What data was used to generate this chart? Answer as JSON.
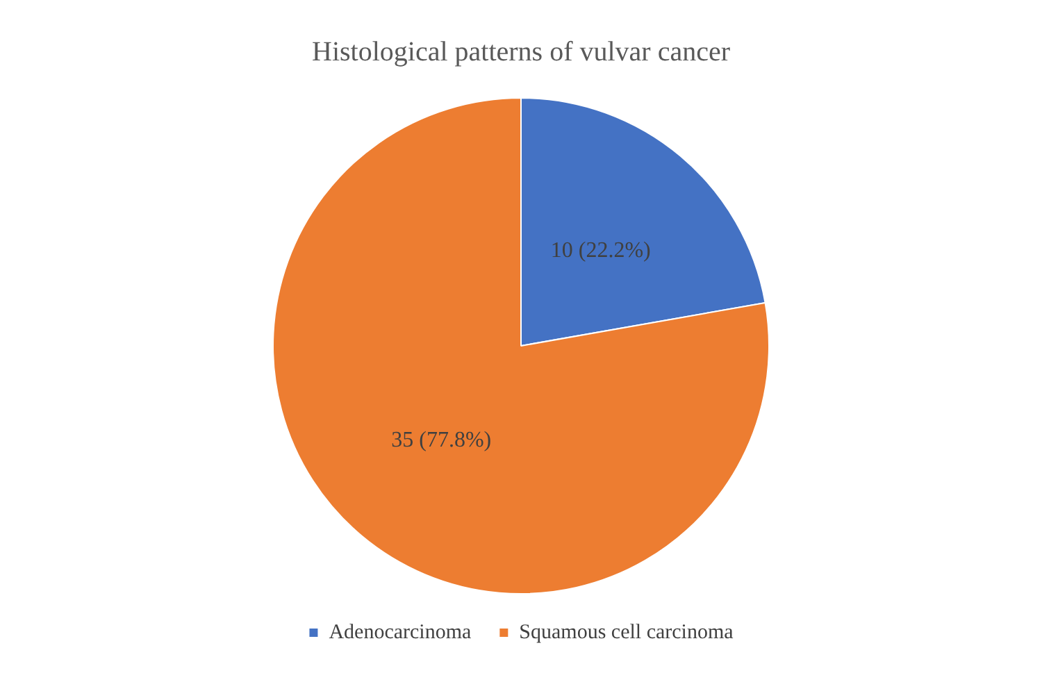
{
  "chart_data": {
    "type": "pie",
    "title": "Histological patterns of vulvar cancer",
    "categories": [
      "Adenocarcinoma",
      "Squamous cell carcinoma"
    ],
    "values": [
      10,
      35
    ],
    "colors": [
      "#4472c4",
      "#ed7d31"
    ],
    "value_labels": [
      "10 (22.2%)",
      "35 (77.8%)"
    ],
    "legend": "bottom"
  }
}
